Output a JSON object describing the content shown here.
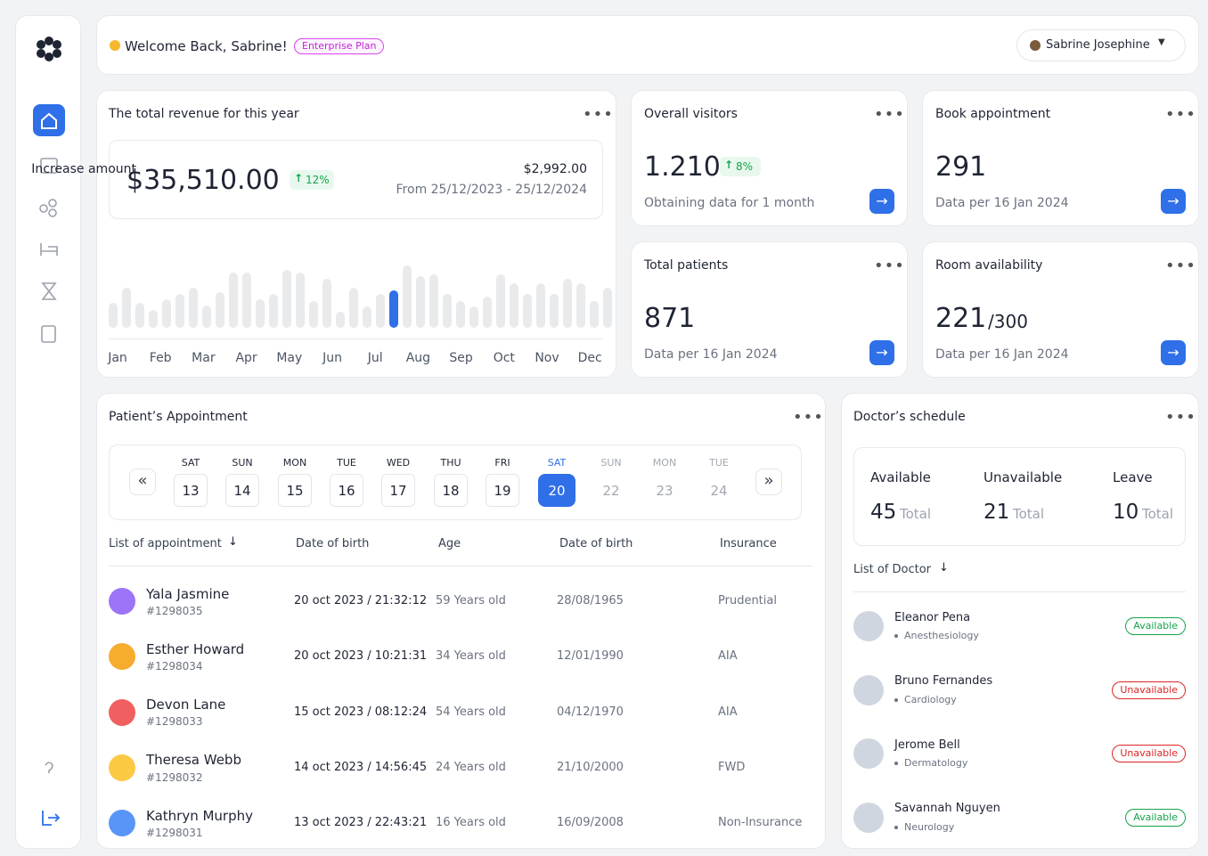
{
  "header": {
    "welcome": "Welcome Back, Sabrine!",
    "plan": "Enterprise Plan",
    "user": "Sabrine Josephine"
  },
  "revenue": {
    "title": "The total revenue for this year",
    "amount": "$35,510.00",
    "change": "12%",
    "increase_label": "Increase amount",
    "increase_value": "$2,992.00",
    "period": "From 25/12/2023 - 25/12/2024",
    "months": [
      "Jan",
      "Feb",
      "Mar",
      "Apr",
      "May",
      "Jun",
      "Jul",
      "Aug",
      "Sep",
      "Oct",
      "Nov",
      "Dec"
    ],
    "bars": [
      28,
      45,
      28,
      20,
      32,
      38,
      45,
      25,
      40,
      62,
      62,
      32,
      38,
      65,
      62,
      30,
      55,
      18,
      45,
      24,
      38,
      42,
      70,
      58,
      60,
      38,
      30,
      24,
      35,
      60,
      50,
      38,
      50,
      38,
      55,
      50,
      30,
      45
    ],
    "bar_color": "#e9eaec",
    "highlight_index": 21,
    "highlight_color": "#2f6fe8"
  },
  "stats": [
    {
      "title": "Overall visitors",
      "value": "1.210",
      "change": "8%",
      "sub": "Obtaining data for 1 month"
    },
    {
      "title": "Book appointment",
      "value": "291",
      "sub": "Data per 16 Jan 2024"
    },
    {
      "title": "Total patients",
      "value": "871",
      "sub": "Data per 16 Jan 2024"
    },
    {
      "title": "Room availability",
      "value": "221",
      "total": "/300",
      "sub": "Data per 16 Jan 2024"
    }
  ],
  "appointments": {
    "title": "Patient’s Appointment",
    "days": [
      {
        "day": "SAT",
        "date": "13"
      },
      {
        "day": "SUN",
        "date": "14"
      },
      {
        "day": "MON",
        "date": "15"
      },
      {
        "day": "TUE",
        "date": "16"
      },
      {
        "day": "WED",
        "date": "17"
      },
      {
        "day": "THU",
        "date": "18"
      },
      {
        "day": "FRI",
        "date": "19"
      },
      {
        "day": "SAT",
        "date": "20"
      },
      {
        "day": "SUN",
        "date": "22"
      },
      {
        "day": "MON",
        "date": "23"
      },
      {
        "day": "TUE",
        "date": "24"
      }
    ],
    "active_index": 7,
    "columns": [
      "List of appointment",
      "Date of birth",
      "Age",
      "Date of birth",
      "Insurance"
    ],
    "rows": [
      {
        "name": "Yala Jasmine",
        "id": "#1298035",
        "datetime": "20 oct 2023 / 21:32:12",
        "age": "59 Years old",
        "dob": "28/08/1965",
        "insurance": "Prudential",
        "color": "#8b5cf6"
      },
      {
        "name": "Esther Howard",
        "id": "#1298034",
        "datetime": "20 oct 2023 / 10:21:31",
        "age": "34 Years old",
        "dob": "12/01/1990",
        "insurance": "AIA",
        "color": "#f59e0b"
      },
      {
        "name": "Devon Lane",
        "id": "#1298033",
        "datetime": "15 oct 2023 / 08:12:24",
        "age": "54 Years old",
        "dob": "04/12/1970",
        "insurance": "AIA",
        "color": "#ef4444"
      },
      {
        "name": "Theresa Webb",
        "id": "#1298032",
        "datetime": "14 oct 2023 / 14:56:45",
        "age": "24 Years old",
        "dob": "21/10/2000",
        "insurance": "FWD",
        "color": "#fbbf24"
      },
      {
        "name": "Kathryn Murphy",
        "id": "#1298031",
        "datetime": "13 oct 2023 / 22:43:21",
        "age": "16 Years old",
        "dob": "16/09/2008",
        "insurance": "Non-Insurance",
        "color": "#3b82f6"
      }
    ]
  },
  "schedule": {
    "title": "Doctor’s schedule",
    "summary": [
      {
        "label": "Available",
        "value": "45",
        "unit": "Total"
      },
      {
        "label": "Unavailable",
        "value": "21",
        "unit": "Total"
      },
      {
        "label": "Leave",
        "value": "10",
        "unit": "Total"
      }
    ],
    "list_title": "List of Doctor",
    "doctors": [
      {
        "name": "Eleanor Pena",
        "specialty": "Anesthesiology",
        "status": "Available",
        "color": "#16a34a"
      },
      {
        "name": "Bruno Fernandes",
        "specialty": "Cardiology",
        "status": "Unavailable",
        "color": "#dc2626"
      },
      {
        "name": "Jerome Bell",
        "specialty": "Dermatology",
        "status": "Unavailable",
        "color": "#dc2626"
      },
      {
        "name": "Savannah Nguyen",
        "specialty": "Neurology",
        "status": "Available",
        "color": "#16a34a"
      }
    ]
  }
}
